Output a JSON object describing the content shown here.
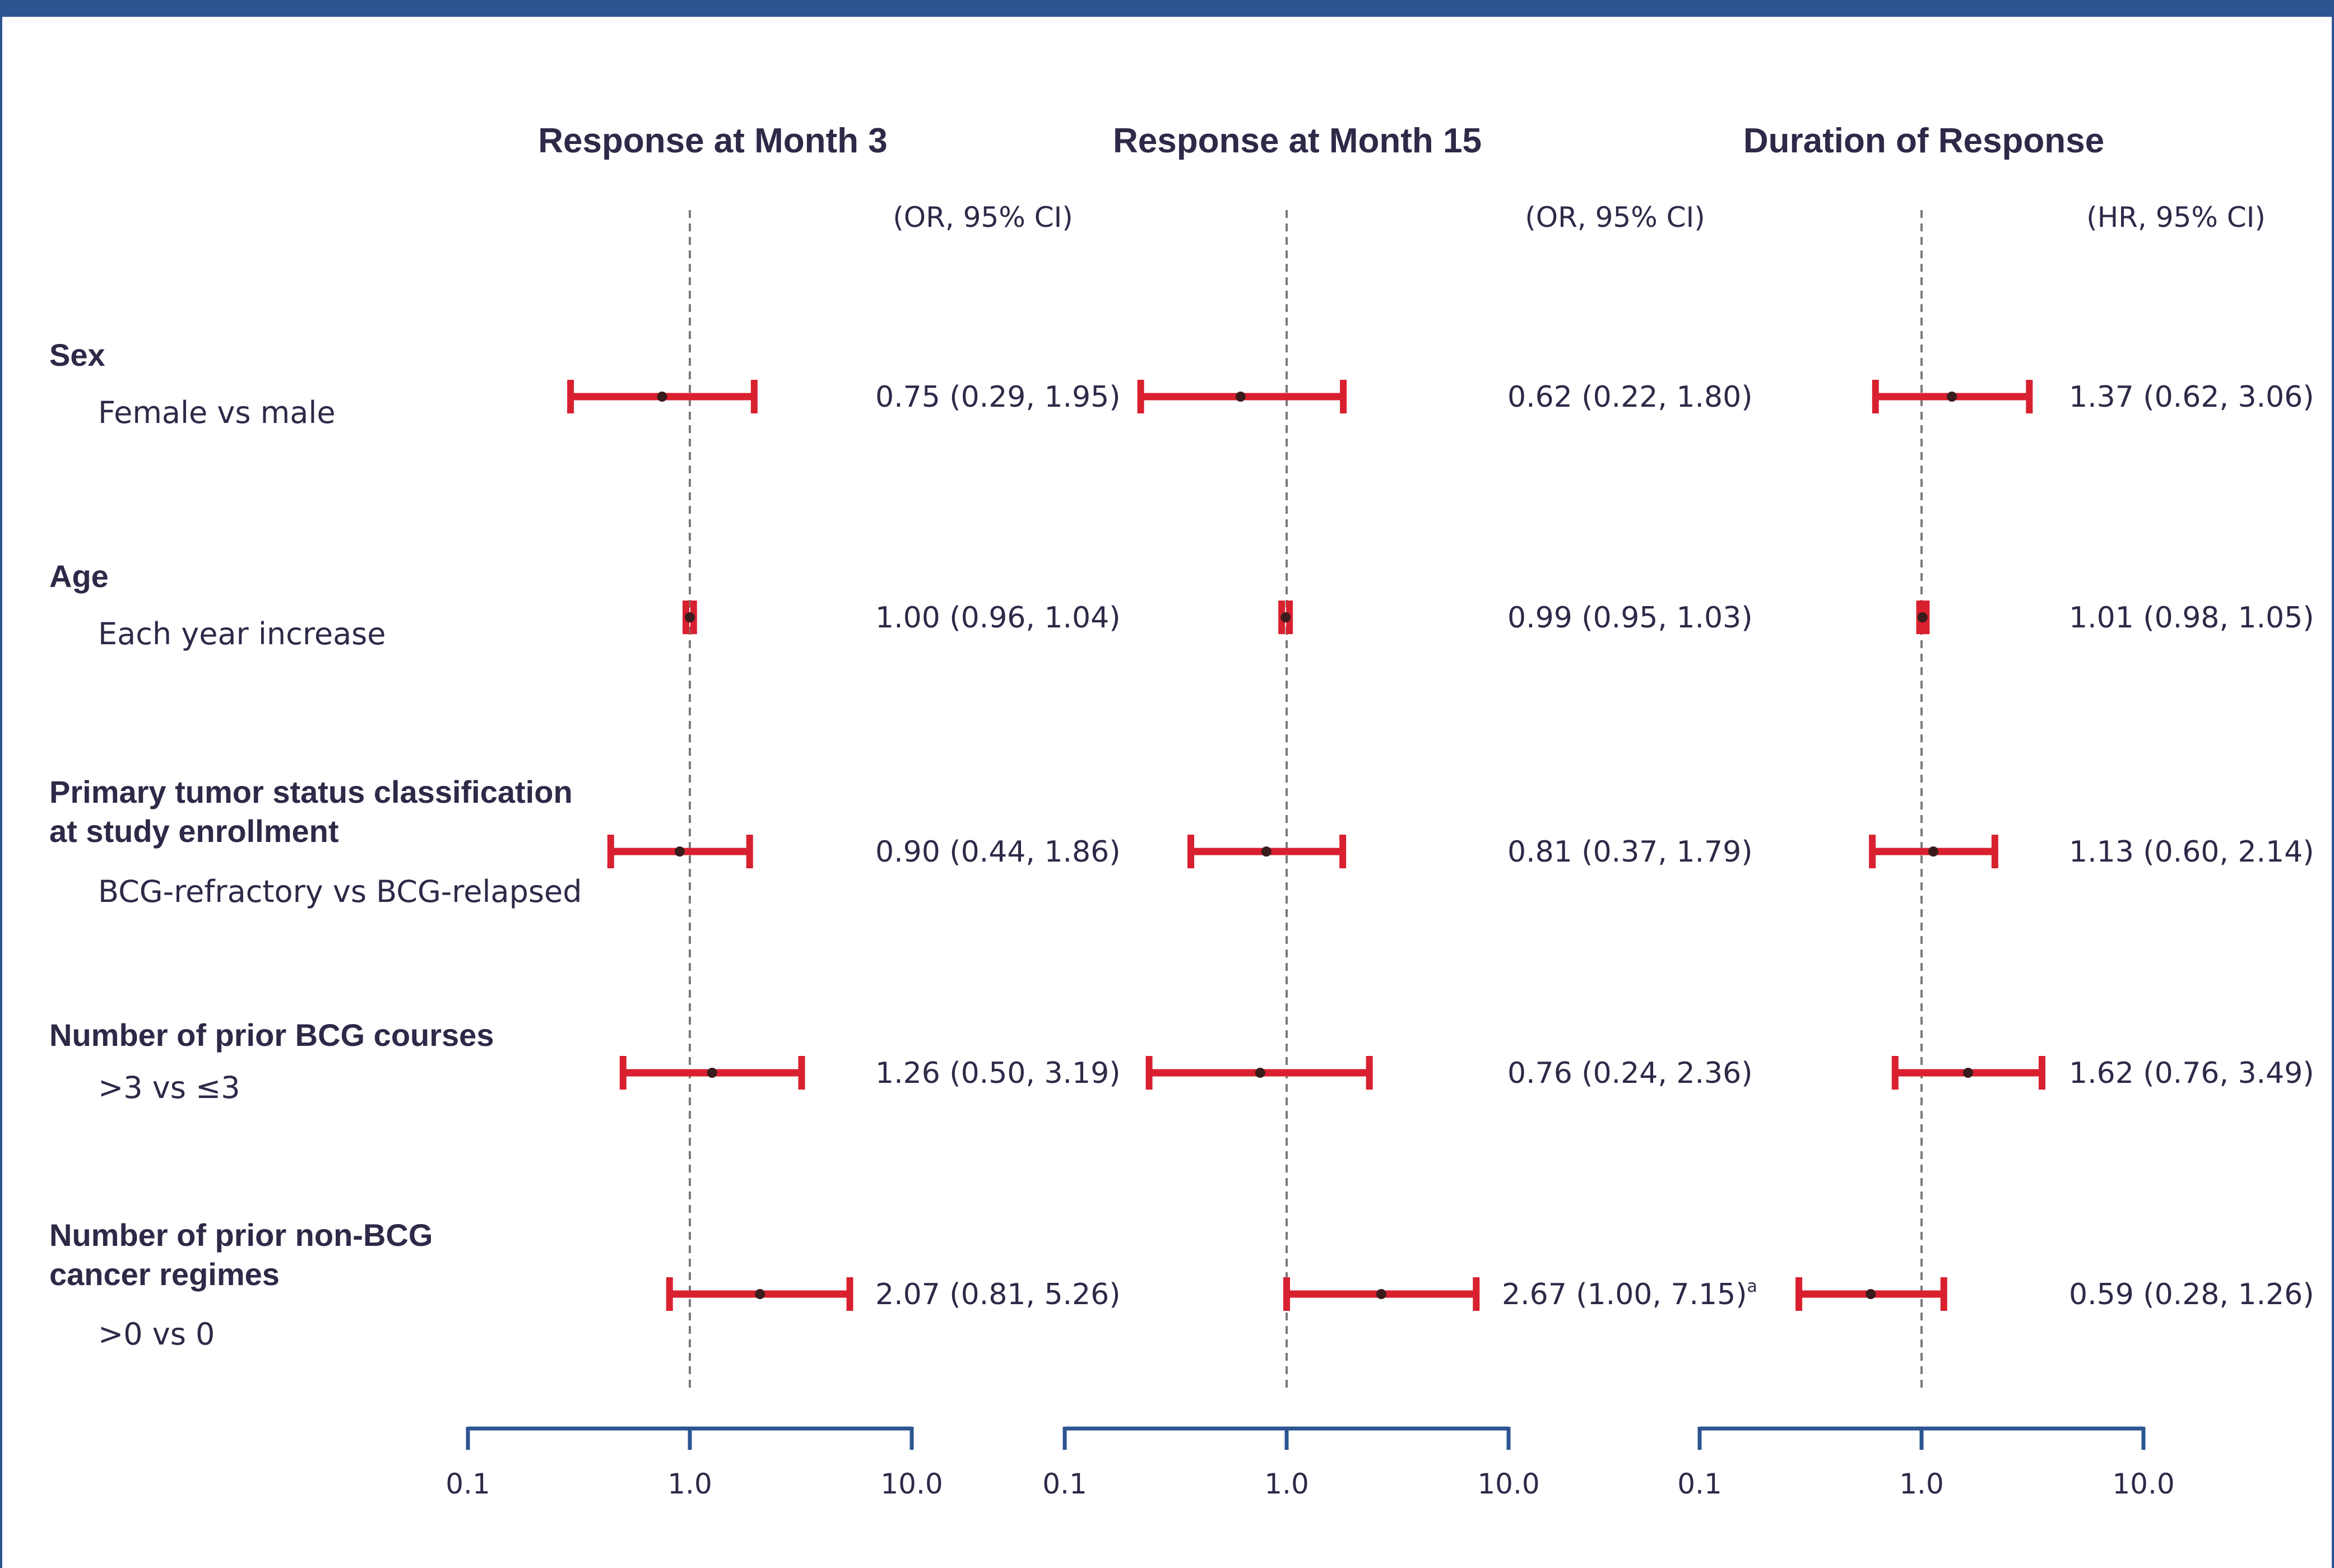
{
  "colors": {
    "ci_bar": "#d9202f",
    "point": "#3a1c1c",
    "axis": "#2c5491",
    "reference_line": "#7a7a7a",
    "text": "#2d2a48",
    "frame": "#2c5491"
  },
  "chart_data": {
    "type": "forest",
    "x_scale": "log10",
    "reference_value": 1.0,
    "rows": [
      {
        "category": [
          "Sex"
        ],
        "comparison": "Female vs male"
      },
      {
        "category": [
          "Age"
        ],
        "comparison": "Each year increase"
      },
      {
        "category": [
          "Primary tumor status classification",
          "at study enrollment"
        ],
        "comparison": "BCG-refractory vs BCG-relapsed"
      },
      {
        "category": [
          "Number of prior BCG courses"
        ],
        "comparison": ">3 vs ≤3"
      },
      {
        "category": [
          "Number of prior non-BCG",
          "cancer regimes"
        ],
        "comparison": ">0 vs 0"
      }
    ],
    "panels": [
      {
        "title": "Response at Month 3",
        "stat_label": "(OR, 95% CI)",
        "xlim": [
          0.1,
          10.0
        ],
        "ticks": [
          "0.1",
          "1.0",
          "10.0"
        ],
        "estimates": [
          {
            "est": 0.75,
            "lo": 0.29,
            "hi": 1.95,
            "label": "0.75 (0.29, 1.95)"
          },
          {
            "est": 1.0,
            "lo": 0.96,
            "hi": 1.04,
            "label": "1.00 (0.96, 1.04)"
          },
          {
            "est": 0.9,
            "lo": 0.44,
            "hi": 1.86,
            "label": "0.90 (0.44, 1.86)"
          },
          {
            "est": 1.26,
            "lo": 0.5,
            "hi": 3.19,
            "label": "1.26 (0.50, 3.19)"
          },
          {
            "est": 2.07,
            "lo": 0.81,
            "hi": 5.26,
            "label": "2.07 (0.81, 5.26)"
          }
        ]
      },
      {
        "title": "Response at Month 15",
        "stat_label": "(OR, 95% CI)",
        "xlim": [
          0.1,
          10.0
        ],
        "ticks": [
          "0.1",
          "1.0",
          "10.0"
        ],
        "estimates": [
          {
            "est": 0.62,
            "lo": 0.22,
            "hi": 1.8,
            "label": "0.62 (0.22, 1.80)"
          },
          {
            "est": 0.99,
            "lo": 0.95,
            "hi": 1.03,
            "label": "0.99 (0.95, 1.03)"
          },
          {
            "est": 0.81,
            "lo": 0.37,
            "hi": 1.79,
            "label": "0.81 (0.37, 1.79)"
          },
          {
            "est": 0.76,
            "lo": 0.24,
            "hi": 2.36,
            "label": "0.76 (0.24, 2.36)"
          },
          {
            "est": 2.67,
            "lo": 1.0,
            "hi": 7.15,
            "label": "2.67 (1.00, 7.15)",
            "footnote": "a"
          }
        ]
      },
      {
        "title": "Duration of Response",
        "stat_label": "(HR, 95% CI)",
        "xlim": [
          0.1,
          10.0
        ],
        "ticks": [
          "0.1",
          "1.0",
          "10.0"
        ],
        "estimates": [
          {
            "est": 1.37,
            "lo": 0.62,
            "hi": 3.06,
            "label": "1.37 (0.62, 3.06)"
          },
          {
            "est": 1.01,
            "lo": 0.98,
            "hi": 1.05,
            "label": "1.01 (0.98, 1.05)"
          },
          {
            "est": 1.13,
            "lo": 0.6,
            "hi": 2.14,
            "label": "1.13 (0.60, 2.14)"
          },
          {
            "est": 1.62,
            "lo": 0.76,
            "hi": 3.49,
            "label": "1.62 (0.76, 3.49)"
          },
          {
            "est": 0.59,
            "lo": 0.28,
            "hi": 1.26,
            "label": "0.59 (0.28, 1.26)"
          }
        ]
      }
    ]
  }
}
